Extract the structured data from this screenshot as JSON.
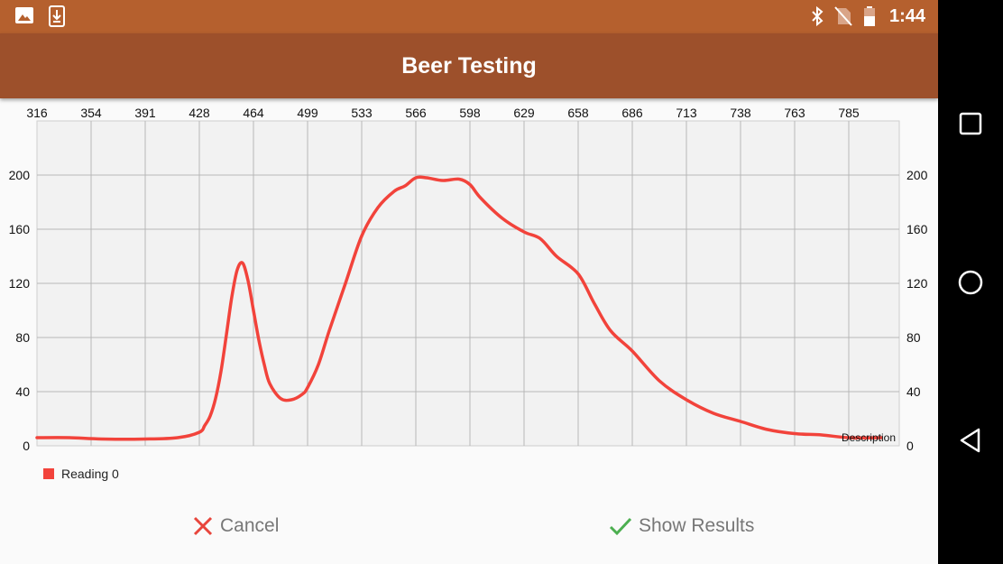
{
  "status_bar": {
    "time": "1:44",
    "left_icons": [
      "image-icon",
      "download-icon"
    ],
    "right_icons": [
      "bluetooth-icon",
      "no-sim-icon",
      "battery-icon"
    ]
  },
  "app_bar": {
    "title": "Beer Testing"
  },
  "chart_data": {
    "type": "line",
    "title": "",
    "xlabel": "",
    "ylabel": "",
    "top_axis_labels": [
      "316",
      "354",
      "391",
      "428",
      "464",
      "499",
      "533",
      "566",
      "598",
      "629",
      "658",
      "686",
      "713",
      "738",
      "763",
      "785"
    ],
    "ylim": [
      0,
      240
    ],
    "yticks": [
      0,
      40,
      80,
      120,
      160,
      200
    ],
    "grid": true,
    "description_label": "Description",
    "line_color": "#f2433b",
    "series": [
      {
        "name": "Reading 0",
        "x": [
          0,
          0.6,
          1.2,
          2.0,
          2.6,
          3.0,
          3.1,
          3.2,
          3.3,
          3.4,
          3.5,
          3.6,
          3.7,
          3.8,
          3.9,
          4.0,
          4.1,
          4.2,
          4.3,
          4.5,
          4.7,
          4.9,
          5.0,
          5.2,
          5.4,
          5.7,
          6.0,
          6.3,
          6.6,
          6.8,
          7.0,
          7.2,
          7.5,
          7.8,
          8.0,
          8.2,
          8.6,
          9.0,
          9.3,
          9.6,
          10.0,
          10.3,
          10.6,
          11.0,
          11.5,
          12.0,
          12.5,
          13.0,
          13.5,
          14.0,
          14.5,
          15.0,
          15.6
        ],
        "values": [
          6,
          6,
          5,
          5,
          6,
          10,
          15,
          22,
          35,
          55,
          82,
          110,
          130,
          135,
          122,
          100,
          78,
          60,
          46,
          35,
          34,
          38,
          43,
          60,
          85,
          120,
          155,
          176,
          188,
          192,
          198,
          198,
          196,
          197,
          193,
          183,
          168,
          158,
          153,
          140,
          127,
          105,
          85,
          70,
          48,
          34,
          24,
          18,
          12,
          9,
          8,
          6,
          6
        ]
      }
    ]
  },
  "legend": {
    "label": "Reading 0",
    "color": "#f2433b"
  },
  "actions": {
    "cancel_label": "Cancel",
    "show_results_label": "Show Results",
    "cancel_icon": "close-icon",
    "show_results_icon": "check-icon",
    "cancel_color": "#e8453c",
    "show_results_color": "#4caf50"
  },
  "nav_bar": {
    "buttons": [
      "recents-icon",
      "home-icon",
      "back-icon"
    ]
  }
}
